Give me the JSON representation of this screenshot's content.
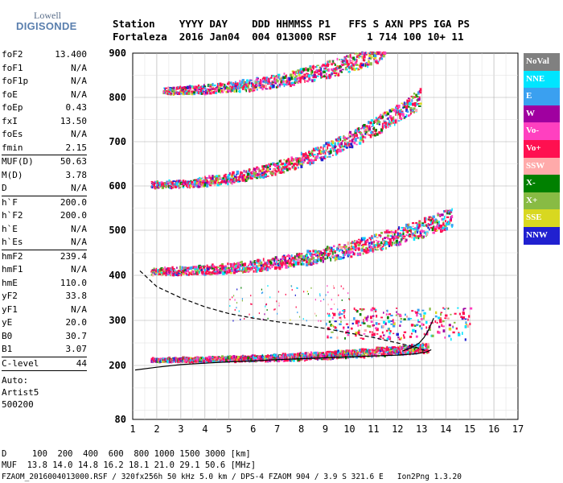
{
  "logo": {
    "line1": "Lowell",
    "line2": "DIGISONDE"
  },
  "header": {
    "line1": "Station    YYYY DAY    DDD HHMMSS P1   FFS S AXN PPS IGA PS",
    "line2": "Fortaleza  2016 Jan04  004 013000 RSF     1 714 100 10+ 11"
  },
  "params": {
    "group1": [
      {
        "k": "foF2",
        "v": "13.400"
      },
      {
        "k": "foF1",
        "v": "N/A"
      },
      {
        "k": "foF1p",
        "v": "N/A"
      },
      {
        "k": "foE",
        "v": "N/A"
      },
      {
        "k": "foEp",
        "v": "0.43"
      },
      {
        "k": "fxI",
        "v": "13.50"
      },
      {
        "k": "foEs",
        "v": "N/A"
      },
      {
        "k": "fmin",
        "v": "2.15"
      }
    ],
    "group2": [
      {
        "k": "MUF(D)",
        "v": "50.63"
      },
      {
        "k": "M(D)",
        "v": "3.78"
      },
      {
        "k": "D",
        "v": "N/A"
      }
    ],
    "group3": [
      {
        "k": "h`F",
        "v": "200.0"
      },
      {
        "k": "h`F2",
        "v": "200.0"
      },
      {
        "k": "h`E",
        "v": "N/A"
      },
      {
        "k": "h`Es",
        "v": "N/A"
      }
    ],
    "group4": [
      {
        "k": "hmF2",
        "v": "239.4"
      },
      {
        "k": "hmF1",
        "v": "N/A"
      },
      {
        "k": "hmE",
        "v": "110.0"
      },
      {
        "k": "yF2",
        "v": "33.8"
      },
      {
        "k": "yF1",
        "v": "N/A"
      },
      {
        "k": "yE",
        "v": "20.0"
      },
      {
        "k": "B0",
        "v": "30.7"
      },
      {
        "k": "B1",
        "v": "3.07"
      }
    ],
    "clevel": {
      "k": "C-level",
      "v": "44"
    },
    "auto1": "Auto:",
    "auto2": "Artist5",
    "auto3": "500200"
  },
  "footer": {
    "line1": "D     100  200  400  600  800 1000 1500 3000 [km]",
    "line2": "MUF  13.8 14.0 14.8 16.2 18.1 21.0 29.1 50.6 [MHz]",
    "line3": "FZAOM_2016004013000.RSF / 320fx256h 50 kHz 5.0 km / DPS-4 FZAOM 904 / 3.9 S 321.6 E   Ion2Png 1.3.20"
  },
  "legend": [
    {
      "label": "NoVal",
      "color": "#808080"
    },
    {
      "label": "NNE",
      "color": "#00e5ff"
    },
    {
      "label": "E",
      "color": "#3aa0f0"
    },
    {
      "label": "W",
      "color": "#a000a0"
    },
    {
      "label": "Vo-",
      "color": "#ff40c0"
    },
    {
      "label": "Vo+",
      "color": "#ff1050"
    },
    {
      "label": "SSW",
      "color": "#ffaaaa"
    },
    {
      "label": "X-",
      "color": "#008000"
    },
    {
      "label": "X+",
      "color": "#88bb44"
    },
    {
      "label": "SSE",
      "color": "#d8d820"
    },
    {
      "label": "NNW",
      "color": "#2020d0"
    }
  ],
  "chart_data": {
    "type": "scatter",
    "xlim": [
      1,
      17
    ],
    "ylim": [
      80,
      900
    ],
    "x_ticks": [
      "1",
      "2",
      "3",
      "4",
      "5",
      "6",
      "7",
      "8",
      "9",
      "10",
      "11",
      "12",
      "13",
      "14",
      "15",
      "16",
      "17"
    ],
    "y_ticks": [
      "80",
      "200",
      "300",
      "400",
      "500",
      "600",
      "700",
      "800",
      "900"
    ],
    "grid": true,
    "legend_position": "right",
    "trace_ribbons": [
      {
        "name": "F2 1st hop",
        "x_from": 1.8,
        "x_to": 13.3,
        "h_at_start": 210,
        "h_at_end": 235
      },
      {
        "name": "F2 2nd hop",
        "x_from": 1.8,
        "x_to": 14.3,
        "h_at_start": 405,
        "h_at_end": 520
      },
      {
        "name": "F2 3rd hop",
        "x_from": 1.8,
        "x_to": 13.0,
        "h_at_start": 600,
        "h_at_end": 790
      },
      {
        "name": "F2 4th hop",
        "x_from": 2.3,
        "x_to": 11.5,
        "h_at_start": 812,
        "h_at_end": 895
      }
    ],
    "lines": [
      {
        "name": "Virtual height trace (fit)",
        "style": "solid",
        "x": [
          1.1,
          2,
          3,
          4,
          5,
          6,
          7,
          8,
          9,
          10,
          11,
          12,
          12.8,
          13.2,
          13.4
        ],
        "y": [
          190,
          196,
          202,
          205,
          208,
          210,
          213,
          215,
          217,
          219,
          221,
          223,
          226,
          230,
          235
        ]
      },
      {
        "name": "Upper trace",
        "style": "solid",
        "x": [
          12.2,
          12.6,
          12.9,
          13.1,
          13.3,
          13.5
        ],
        "y": [
          232,
          240,
          250,
          262,
          280,
          305
        ]
      },
      {
        "name": "Profile",
        "style": "dashed",
        "x": [
          1.3,
          2,
          3,
          4,
          5,
          6,
          7,
          8,
          9,
          10,
          11,
          12,
          12.8,
          13.2
        ],
        "y": [
          410,
          375,
          350,
          330,
          315,
          305,
          297,
          290,
          282,
          272,
          262,
          250,
          240,
          232
        ]
      }
    ]
  }
}
